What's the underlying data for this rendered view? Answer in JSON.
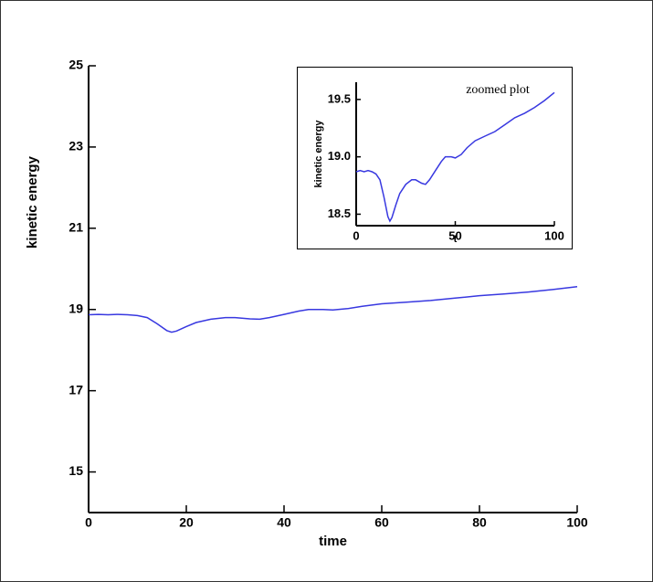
{
  "chart_data": [
    {
      "type": "line",
      "x_label": "time",
      "y_label": "kinetic energy",
      "xlim": [
        0,
        100
      ],
      "ylim": [
        14,
        25
      ],
      "xticks": [
        0,
        20,
        40,
        60,
        80,
        100
      ],
      "yticks": [
        15,
        17,
        19,
        21,
        23,
        25
      ],
      "x": [
        0,
        2,
        4,
        6,
        8,
        10,
        12,
        14,
        16,
        17,
        18,
        20,
        22,
        25,
        28,
        30,
        33,
        35,
        37,
        40,
        43,
        45,
        48,
        50,
        53,
        56,
        60,
        65,
        70,
        75,
        80,
        85,
        90,
        95,
        100
      ],
      "series": [
        {
          "color": "#3838e0",
          "values": [
            18.87,
            18.88,
            18.87,
            18.88,
            18.87,
            18.85,
            18.8,
            18.65,
            18.48,
            18.44,
            18.47,
            18.58,
            18.68,
            18.76,
            18.8,
            18.8,
            18.77,
            18.76,
            18.8,
            18.88,
            18.96,
            19.0,
            19.0,
            18.99,
            19.02,
            19.08,
            19.14,
            19.18,
            19.22,
            19.28,
            19.34,
            19.38,
            19.43,
            19.49,
            19.56
          ]
        }
      ]
    },
    {
      "type": "line",
      "title": "zoomed plot",
      "x_label": "t",
      "y_label": "kinetic energy",
      "xlim": [
        0,
        100
      ],
      "ylim": [
        18.4,
        19.65
      ],
      "xticks": [
        0,
        50,
        100
      ],
      "yticks": [
        18.5,
        {
          "value": 19,
          "label": "19.0"
        },
        19.5
      ],
      "x": [
        0,
        2,
        4,
        6,
        8,
        10,
        12,
        14,
        16,
        17,
        18,
        20,
        22,
        25,
        28,
        30,
        33,
        35,
        37,
        40,
        43,
        45,
        48,
        50,
        53,
        56,
        60,
        65,
        70,
        75,
        80,
        85,
        90,
        95,
        100
      ],
      "series": [
        {
          "color": "#3838e0",
          "values": [
            18.87,
            18.88,
            18.87,
            18.88,
            18.87,
            18.85,
            18.8,
            18.65,
            18.48,
            18.44,
            18.47,
            18.58,
            18.68,
            18.76,
            18.8,
            18.8,
            18.77,
            18.76,
            18.8,
            18.88,
            18.96,
            19.0,
            19.0,
            18.99,
            19.02,
            19.08,
            19.14,
            19.18,
            19.22,
            19.28,
            19.34,
            19.38,
            19.43,
            19.49,
            19.56
          ]
        }
      ]
    }
  ]
}
